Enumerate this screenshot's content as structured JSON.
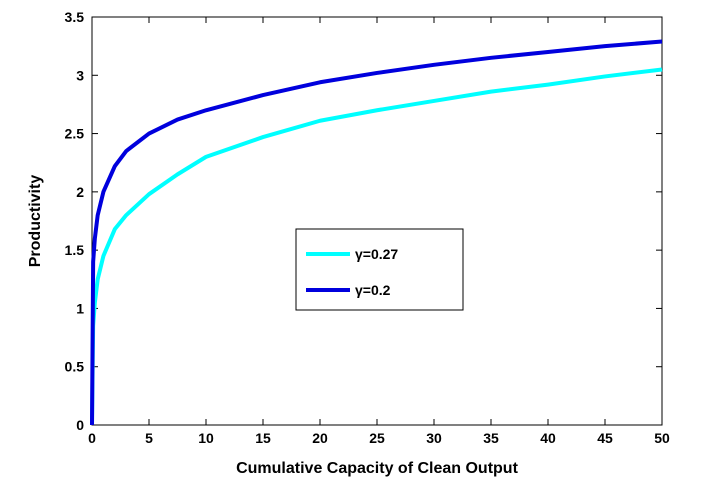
{
  "chart_data": {
    "type": "line",
    "x_label": "Cumulative Capacity of Clean Output",
    "y_label": "Productivity",
    "x": [
      0,
      0.1,
      0.25,
      0.5,
      1,
      2,
      3,
      5,
      7.5,
      10,
      15,
      20,
      25,
      30,
      35,
      40,
      45,
      50
    ],
    "series": [
      {
        "name": "γ=0.27",
        "color": "#00ffff",
        "values": [
          0,
          0.85,
          1.05,
          1.25,
          1.45,
          1.68,
          1.8,
          1.98,
          2.15,
          2.3,
          2.47,
          2.61,
          2.7,
          2.78,
          2.86,
          2.92,
          2.99,
          3.05
        ]
      },
      {
        "name": "γ=0.2",
        "color": "#0000dd",
        "values": [
          0,
          1.4,
          1.6,
          1.8,
          2.0,
          2.22,
          2.35,
          2.5,
          2.62,
          2.7,
          2.83,
          2.94,
          3.02,
          3.09,
          3.15,
          3.2,
          3.25,
          3.29
        ]
      }
    ],
    "xlim": [
      0,
      50
    ],
    "ylim": [
      0,
      3.5
    ],
    "xticks": [
      0,
      5,
      10,
      15,
      20,
      25,
      30,
      35,
      40,
      45,
      50
    ],
    "yticks": [
      0,
      0.5,
      1,
      1.5,
      2,
      2.5,
      3,
      3.5
    ],
    "grid": false
  }
}
